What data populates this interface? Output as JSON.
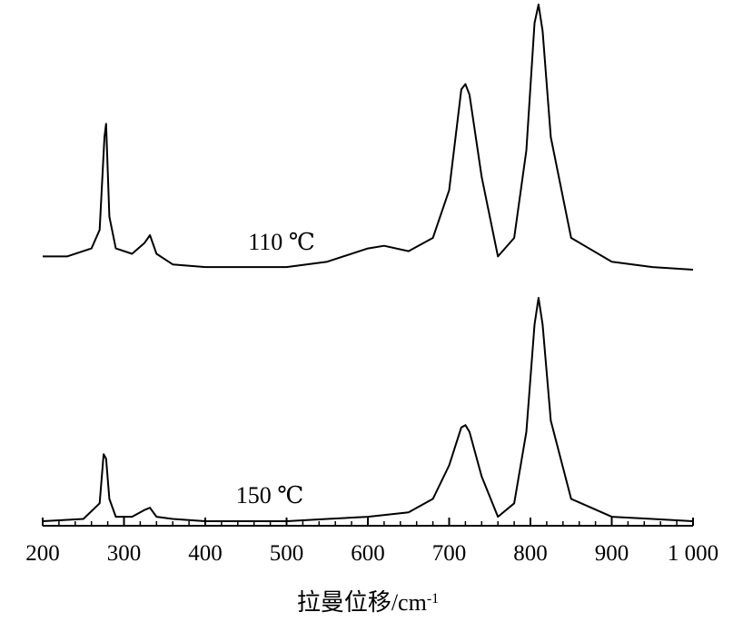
{
  "chart_data": {
    "type": "line",
    "xlabel": "拉曼位移/cm",
    "xlabel_sup": "-1",
    "xlim": [
      200,
      1000
    ],
    "x_ticks": [
      200,
      300,
      400,
      500,
      600,
      700,
      800,
      900,
      1000
    ],
    "x_tick_labels": [
      "200",
      "300",
      "400",
      "500",
      "600",
      "700",
      "800",
      "900",
      "1 000"
    ],
    "y_axis_shown": false,
    "grid": false,
    "legend": "none",
    "line_color": "#000000",
    "series": [
      {
        "name": "110 ℃",
        "stacked": "upper",
        "x": [
          200,
          230,
          260,
          270,
          276,
          278,
          282,
          290,
          310,
          325,
          332,
          340,
          360,
          400,
          450,
          500,
          550,
          600,
          620,
          650,
          680,
          700,
          715,
          720,
          725,
          740,
          760,
          780,
          795,
          805,
          810,
          815,
          825,
          850,
          900,
          950,
          1000
        ],
        "y": [
          0.05,
          0.05,
          0.08,
          0.15,
          0.5,
          0.55,
          0.2,
          0.08,
          0.06,
          0.1,
          0.13,
          0.06,
          0.02,
          0.01,
          0.01,
          0.01,
          0.03,
          0.08,
          0.09,
          0.07,
          0.12,
          0.3,
          0.68,
          0.7,
          0.66,
          0.35,
          0.05,
          0.12,
          0.45,
          0.93,
          1.0,
          0.9,
          0.5,
          0.12,
          0.03,
          0.01,
          0.0
        ]
      },
      {
        "name": "150 ℃",
        "stacked": "lower",
        "x": [
          200,
          250,
          270,
          275,
          278,
          282,
          290,
          310,
          325,
          332,
          340,
          360,
          400,
          450,
          500,
          550,
          600,
          650,
          680,
          700,
          715,
          720,
          725,
          740,
          760,
          780,
          795,
          805,
          810,
          815,
          825,
          850,
          900,
          950,
          1000
        ],
        "y": [
          0.0,
          0.01,
          0.08,
          0.3,
          0.28,
          0.1,
          0.02,
          0.02,
          0.05,
          0.06,
          0.02,
          0.01,
          0.0,
          0.0,
          0.0,
          0.01,
          0.02,
          0.04,
          0.1,
          0.25,
          0.42,
          0.43,
          0.4,
          0.2,
          0.02,
          0.08,
          0.4,
          0.88,
          1.0,
          0.88,
          0.45,
          0.1,
          0.02,
          0.01,
          0.0
        ]
      }
    ]
  }
}
